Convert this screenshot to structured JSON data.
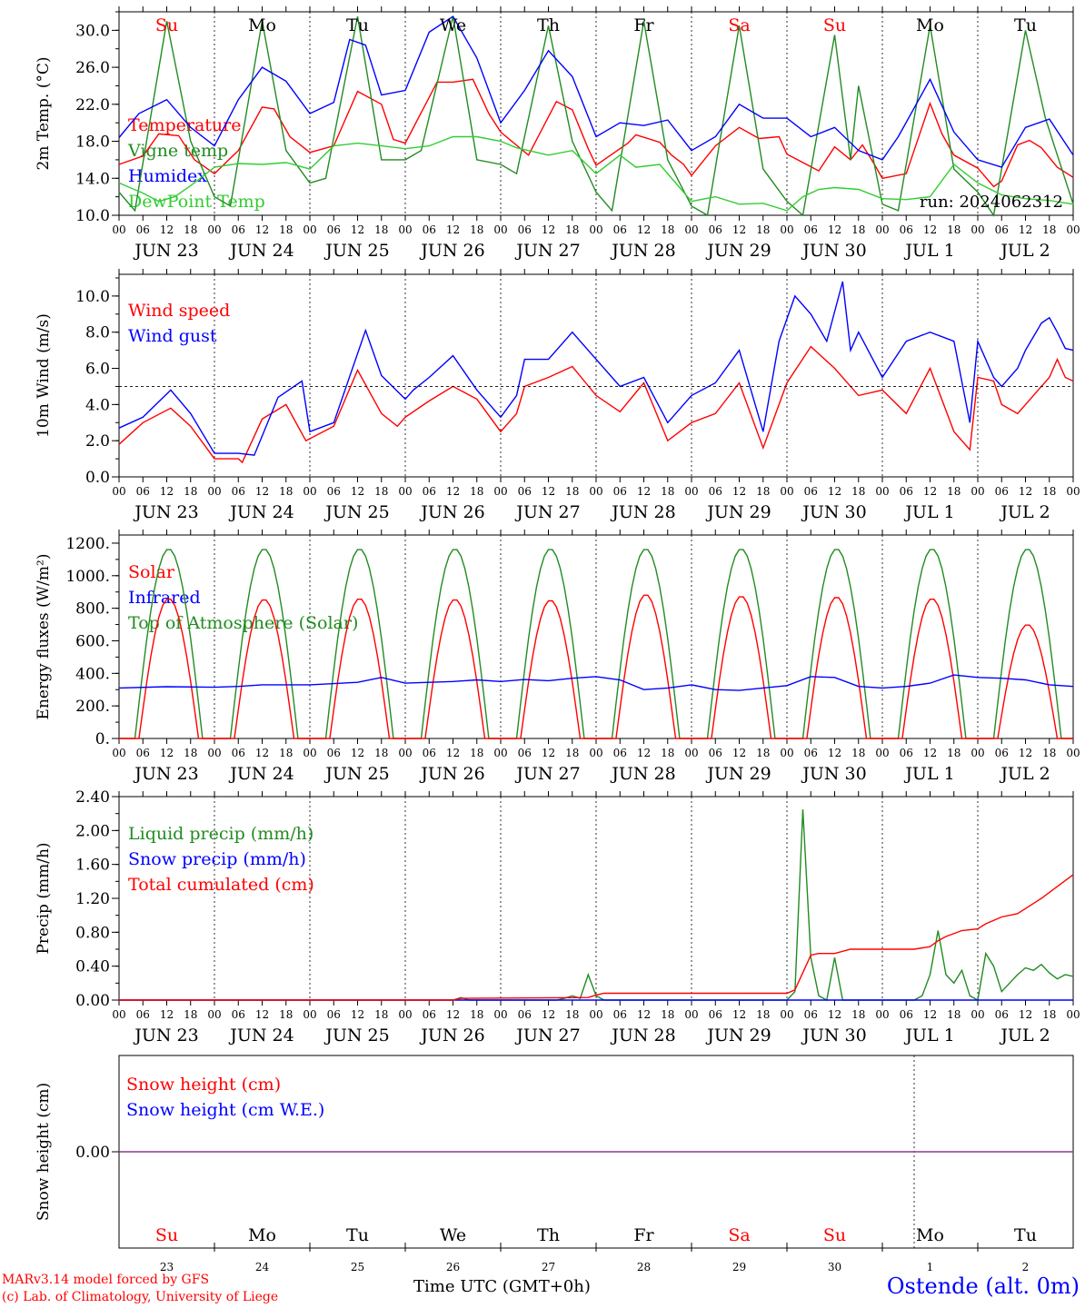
{
  "run_label": "run: 2024062312",
  "day_letters": [
    {
      "t": "Su",
      "c": "#ff0000"
    },
    {
      "t": "Mo",
      "c": "#000000"
    },
    {
      "t": "Tu",
      "c": "#000000"
    },
    {
      "t": "We",
      "c": "#000000"
    },
    {
      "t": "Th",
      "c": "#000000"
    },
    {
      "t": "Fr",
      "c": "#000000"
    },
    {
      "t": "Sa",
      "c": "#ff0000"
    },
    {
      "t": "Su",
      "c": "#ff0000"
    },
    {
      "t": "Mo",
      "c": "#000000"
    },
    {
      "t": "Tu",
      "c": "#000000"
    }
  ],
  "date_labels": [
    "JUN 23",
    "JUN 24",
    "JUN 25",
    "JUN 26",
    "JUN 27",
    "JUN 28",
    "JUN 29",
    "JUN 30",
    "JUL  1",
    "JUL  2"
  ],
  "hour_labels": [
    "00",
    "06",
    "12",
    "18"
  ],
  "day_numbers": [
    "23",
    "24",
    "25",
    "26",
    "27",
    "28",
    "29",
    "30",
    "1",
    "2"
  ],
  "footer": {
    "credit_line1": "MARv3.14 model forced by GFS",
    "credit_line2": "(c) Lab. of Climatology, University of Liege",
    "time_label": "Time UTC (GMT+0h)",
    "station": "Ostende (alt. 0m)"
  },
  "chart_data": [
    {
      "type": "line",
      "ylabel": "2m Temp. (°C)",
      "ylim": [
        10,
        32
      ],
      "yticks": [
        "10.0",
        "14.0",
        "18.0",
        "22.0",
        "26.0",
        "30.0"
      ],
      "x_unit": "hours since Jun 23 00 UTC",
      "x_range": [
        0,
        240
      ],
      "series": [
        {
          "name": "Temperature",
          "color": "#ff0000",
          "x": [
            0,
            6,
            10,
            15,
            19,
            24,
            30,
            36,
            39,
            43,
            48,
            54,
            60,
            66,
            69,
            72,
            80,
            84,
            89,
            93,
            96,
            103,
            110,
            114,
            118,
            120,
            128,
            130,
            136,
            139,
            142,
            144,
            150,
            156,
            161,
            166,
            168,
            176,
            180,
            184,
            187,
            190,
            192,
            198,
            204,
            207,
            210,
            216,
            220,
            222,
            226,
            229,
            232,
            236,
            240
          ],
          "y": [
            15.5,
            16.4,
            18.8,
            18.6,
            16,
            14.5,
            17,
            21.7,
            21.5,
            18.5,
            16.8,
            17.5,
            23.4,
            22,
            18.2,
            17.8,
            24.4,
            24.4,
            24.7,
            21,
            19,
            16.5,
            22.3,
            21.4,
            17.2,
            15.4,
            17.8,
            18.7,
            17.9,
            16.5,
            15.5,
            14.3,
            17.5,
            19.5,
            18.3,
            18.5,
            16.6,
            14.8,
            17.4,
            16,
            17.6,
            15.5,
            14,
            14.5,
            22.1,
            18.8,
            16.5,
            15.1,
            13.1,
            13.7,
            17.6,
            18.1,
            17.3,
            15.2,
            14.1
          ]
        },
        {
          "name": "Vigne temp",
          "color": "#228b22",
          "x": [
            0,
            4,
            12,
            18,
            24,
            28,
            36,
            42,
            48,
            52,
            60,
            66,
            72,
            76,
            84,
            90,
            96,
            100,
            108,
            114,
            120,
            124,
            132,
            138,
            144,
            148,
            156,
            162,
            168,
            172,
            180,
            184,
            186,
            192,
            196,
            204,
            210,
            216,
            220,
            228,
            233,
            240
          ],
          "y": [
            12.5,
            10.5,
            31,
            18,
            12,
            11,
            31,
            17,
            13.5,
            14,
            31.5,
            16,
            16,
            17,
            31.5,
            16,
            15.5,
            14.5,
            30.5,
            18,
            12.5,
            10.5,
            31,
            16,
            11,
            10,
            30.5,
            15,
            11.5,
            10,
            29.5,
            16,
            24,
            11.2,
            10.5,
            30.5,
            15,
            12.5,
            10,
            30,
            20.5,
            11.2
          ]
        },
        {
          "name": "Humidex",
          "color": "#0000ff",
          "x": [
            0,
            5,
            12,
            18,
            24,
            30,
            36,
            42,
            48,
            54,
            58,
            62,
            66,
            72,
            78,
            84,
            90,
            96,
            102,
            108,
            114,
            120,
            126,
            132,
            138,
            144,
            150,
            156,
            162,
            168,
            174,
            180,
            186,
            192,
            196,
            204,
            210,
            216,
            222,
            228,
            234,
            240
          ],
          "y": [
            18.4,
            21,
            22.5,
            19.5,
            17.5,
            22.5,
            26,
            24.5,
            21,
            22.2,
            29,
            28.4,
            23,
            23.5,
            29.8,
            31.5,
            27,
            20,
            23.5,
            27.8,
            25,
            18.5,
            20,
            19.7,
            20.3,
            17,
            18.5,
            22,
            20.5,
            20.5,
            18.5,
            19.5,
            17,
            16,
            18.5,
            24.7,
            19,
            16,
            15.2,
            19.5,
            20.4,
            16.5
          ]
        },
        {
          "name": "DewPoint Temp",
          "color": "#32cd32",
          "x": [
            0,
            6,
            10,
            14,
            18,
            24,
            30,
            36,
            42,
            48,
            54,
            60,
            66,
            72,
            78,
            84,
            90,
            96,
            100,
            108,
            114,
            120,
            126,
            130,
            136,
            144,
            150,
            156,
            162,
            168,
            172,
            176,
            180,
            186,
            192,
            198,
            204,
            210,
            216,
            222,
            228,
            234,
            240
          ],
          "y": [
            13.5,
            12.4,
            11.5,
            12,
            13.2,
            15.2,
            15.6,
            15.5,
            15.7,
            15,
            17.5,
            17.8,
            17.5,
            17.2,
            17.5,
            18.5,
            18.5,
            18,
            17.3,
            16.5,
            17,
            14.5,
            16.5,
            15.2,
            15.5,
            11.5,
            12,
            11.2,
            11.3,
            10.5,
            12,
            12.8,
            13,
            12.8,
            11.8,
            11.7,
            12,
            15.5,
            13.5,
            12.2,
            11.8,
            11.6,
            11.2
          ]
        }
      ]
    },
    {
      "type": "line",
      "ylabel": "10m Wind (m/s)",
      "ylim": [
        0,
        11.2
      ],
      "yticks": [
        "0.0",
        "2.0",
        "4.0",
        "6.0",
        "8.0",
        "10.0"
      ],
      "reference_line": 5.0,
      "x_unit": "hours since Jun 23 00 UTC",
      "x_range": [
        0,
        240
      ],
      "series": [
        {
          "name": "Wind speed",
          "color": "#ff0000",
          "x": [
            0,
            6,
            13,
            18,
            24,
            30,
            31,
            36,
            42,
            47,
            54,
            60,
            66,
            70,
            72,
            78,
            84,
            90,
            96,
            100,
            102,
            108,
            114,
            120,
            126,
            132,
            138,
            144,
            150,
            156,
            162,
            168,
            174,
            180,
            186,
            192,
            198,
            204,
            210,
            214,
            216,
            220,
            222,
            226,
            228,
            232,
            234,
            236,
            238,
            240
          ],
          "y": [
            1.8,
            3,
            3.8,
            2.8,
            1,
            1,
            0.8,
            3.2,
            4,
            2,
            2.8,
            5.9,
            3.5,
            2.8,
            3.3,
            4.2,
            5,
            4.3,
            2.5,
            3.5,
            5,
            5.5,
            6.1,
            4.5,
            3.6,
            5.2,
            2,
            3,
            3.5,
            5.2,
            1.6,
            5.2,
            7.2,
            6,
            4.5,
            4.8,
            3.5,
            6,
            2.5,
            1.5,
            5.5,
            5.3,
            4,
            3.5,
            4,
            5,
            5.5,
            6.5,
            5.5,
            5.3
          ]
        },
        {
          "name": "Wind gust",
          "color": "#0000ff",
          "x": [
            0,
            6,
            13,
            18,
            24,
            30,
            34,
            40,
            46,
            48,
            54,
            62,
            66,
            72,
            74,
            78,
            84,
            90,
            96,
            100,
            102,
            108,
            114,
            120,
            126,
            132,
            138,
            144,
            150,
            156,
            162,
            166,
            170,
            174,
            178,
            182,
            184,
            186,
            192,
            198,
            204,
            210,
            214,
            216,
            220,
            222,
            226,
            228,
            232,
            234,
            236,
            238,
            240
          ],
          "y": [
            2.7,
            3.3,
            4.8,
            3.5,
            1.3,
            1.3,
            1.2,
            4.4,
            5.3,
            2.5,
            3,
            8.1,
            5.6,
            4.3,
            4.8,
            5.5,
            6.7,
            4.8,
            3.3,
            4.5,
            6.5,
            6.5,
            8,
            6.5,
            5,
            5.5,
            3,
            4.5,
            5.2,
            7,
            2.5,
            7.5,
            10,
            9,
            7.5,
            10.8,
            7,
            8,
            5.5,
            7.5,
            8,
            7.5,
            3,
            7.5,
            5.5,
            5,
            6,
            7,
            8.5,
            8.8,
            8,
            7.1,
            7
          ]
        }
      ]
    },
    {
      "type": "line",
      "ylabel": "Energy fluxes (W/m²)",
      "ylim": [
        0,
        1250
      ],
      "yticks": [
        "0.",
        "200.",
        "400.",
        "600.",
        "800.",
        "1000.",
        "1200."
      ],
      "x_unit": "hours since Jun 23 00 UTC",
      "x_range": [
        0,
        240
      ],
      "daily_peak_solar": [
        860,
        855,
        860,
        855,
        850,
        885,
        875,
        870,
        860,
        700
      ],
      "toa_peak": 1165,
      "series": [
        {
          "name": "Solar",
          "color": "#ff0000"
        },
        {
          "name": "Infrared",
          "color": "#0000ff",
          "x": [
            0,
            12,
            24,
            30,
            36,
            48,
            60,
            66,
            72,
            84,
            90,
            96,
            102,
            108,
            114,
            120,
            126,
            132,
            138,
            144,
            150,
            156,
            162,
            168,
            174,
            180,
            186,
            192,
            198,
            204,
            210,
            216,
            222,
            228,
            234,
            240
          ],
          "y": [
            310,
            318,
            315,
            320,
            330,
            330,
            345,
            375,
            340,
            350,
            360,
            350,
            362,
            355,
            370,
            380,
            360,
            300,
            310,
            330,
            300,
            295,
            310,
            325,
            380,
            375,
            320,
            310,
            320,
            340,
            390,
            375,
            370,
            360,
            330,
            320
          ]
        },
        {
          "name": "Top of Atmosphere (Solar)",
          "color": "#228b22"
        }
      ]
    },
    {
      "type": "line",
      "ylabel": "Precip (mm/h)",
      "ylim": [
        0,
        2.4
      ],
      "yticks": [
        "0.00",
        "0.40",
        "0.80",
        "1.20",
        "1.60",
        "2.00",
        "2.40"
      ],
      "x_unit": "hours since Jun 23 00 UTC",
      "x_range": [
        0,
        240
      ],
      "series": [
        {
          "name": "Liquid precip (mm/h)",
          "color": "#228b22",
          "x": [
            0,
            84,
            86,
            88,
            110,
            112,
            114,
            116,
            118,
            120,
            122,
            168,
            170,
            172,
            174,
            176,
            178,
            180,
            182,
            184,
            200,
            202,
            204,
            206,
            208,
            210,
            212,
            214,
            216,
            218,
            220,
            222,
            224,
            226,
            228,
            230,
            232,
            234,
            236,
            238,
            240
          ],
          "y": [
            0,
            0,
            0.03,
            0,
            0,
            0.02,
            0.05,
            0.02,
            0.3,
            0.05,
            0,
            0,
            0.1,
            2.25,
            0.5,
            0.05,
            0,
            0.5,
            0,
            0,
            0,
            0.05,
            0.3,
            0.82,
            0.3,
            0.2,
            0.35,
            0.05,
            0,
            0.55,
            0.4,
            0.1,
            0.2,
            0.3,
            0.38,
            0.35,
            0.42,
            0.32,
            0.25,
            0.3,
            0.28
          ]
        },
        {
          "name": "Snow precip (mm/h)",
          "color": "#0000ff",
          "x": [
            0,
            240
          ],
          "y": [
            0,
            0
          ]
        },
        {
          "name": "Total cumulated (cm)",
          "color": "#ff0000",
          "x": [
            0,
            84,
            86,
            118,
            120,
            122,
            168,
            170,
            174,
            176,
            180,
            184,
            200,
            204,
            206,
            208,
            212,
            216,
            218,
            222,
            226,
            232,
            240
          ],
          "y": [
            0,
            0,
            0.02,
            0.03,
            0.06,
            0.08,
            0.08,
            0.12,
            0.53,
            0.55,
            0.55,
            0.6,
            0.6,
            0.63,
            0.7,
            0.75,
            0.82,
            0.84,
            0.9,
            0.98,
            1.02,
            1.2,
            1.48
          ]
        }
      ]
    },
    {
      "type": "line",
      "ylabel": "Snow height (cm)",
      "yticks": [
        "0.00"
      ],
      "x_unit": "hours since Jun 23 00 UTC",
      "x_range": [
        0,
        240
      ],
      "series": [
        {
          "name": "Snow height (cm)",
          "color": "#ff0000",
          "x": [
            0,
            240
          ],
          "y": [
            0,
            0
          ]
        },
        {
          "name": "Snow height (cm W.E.)",
          "color": "#0000ff",
          "x": [
            0,
            240
          ],
          "y": [
            0,
            0
          ]
        }
      ]
    }
  ]
}
